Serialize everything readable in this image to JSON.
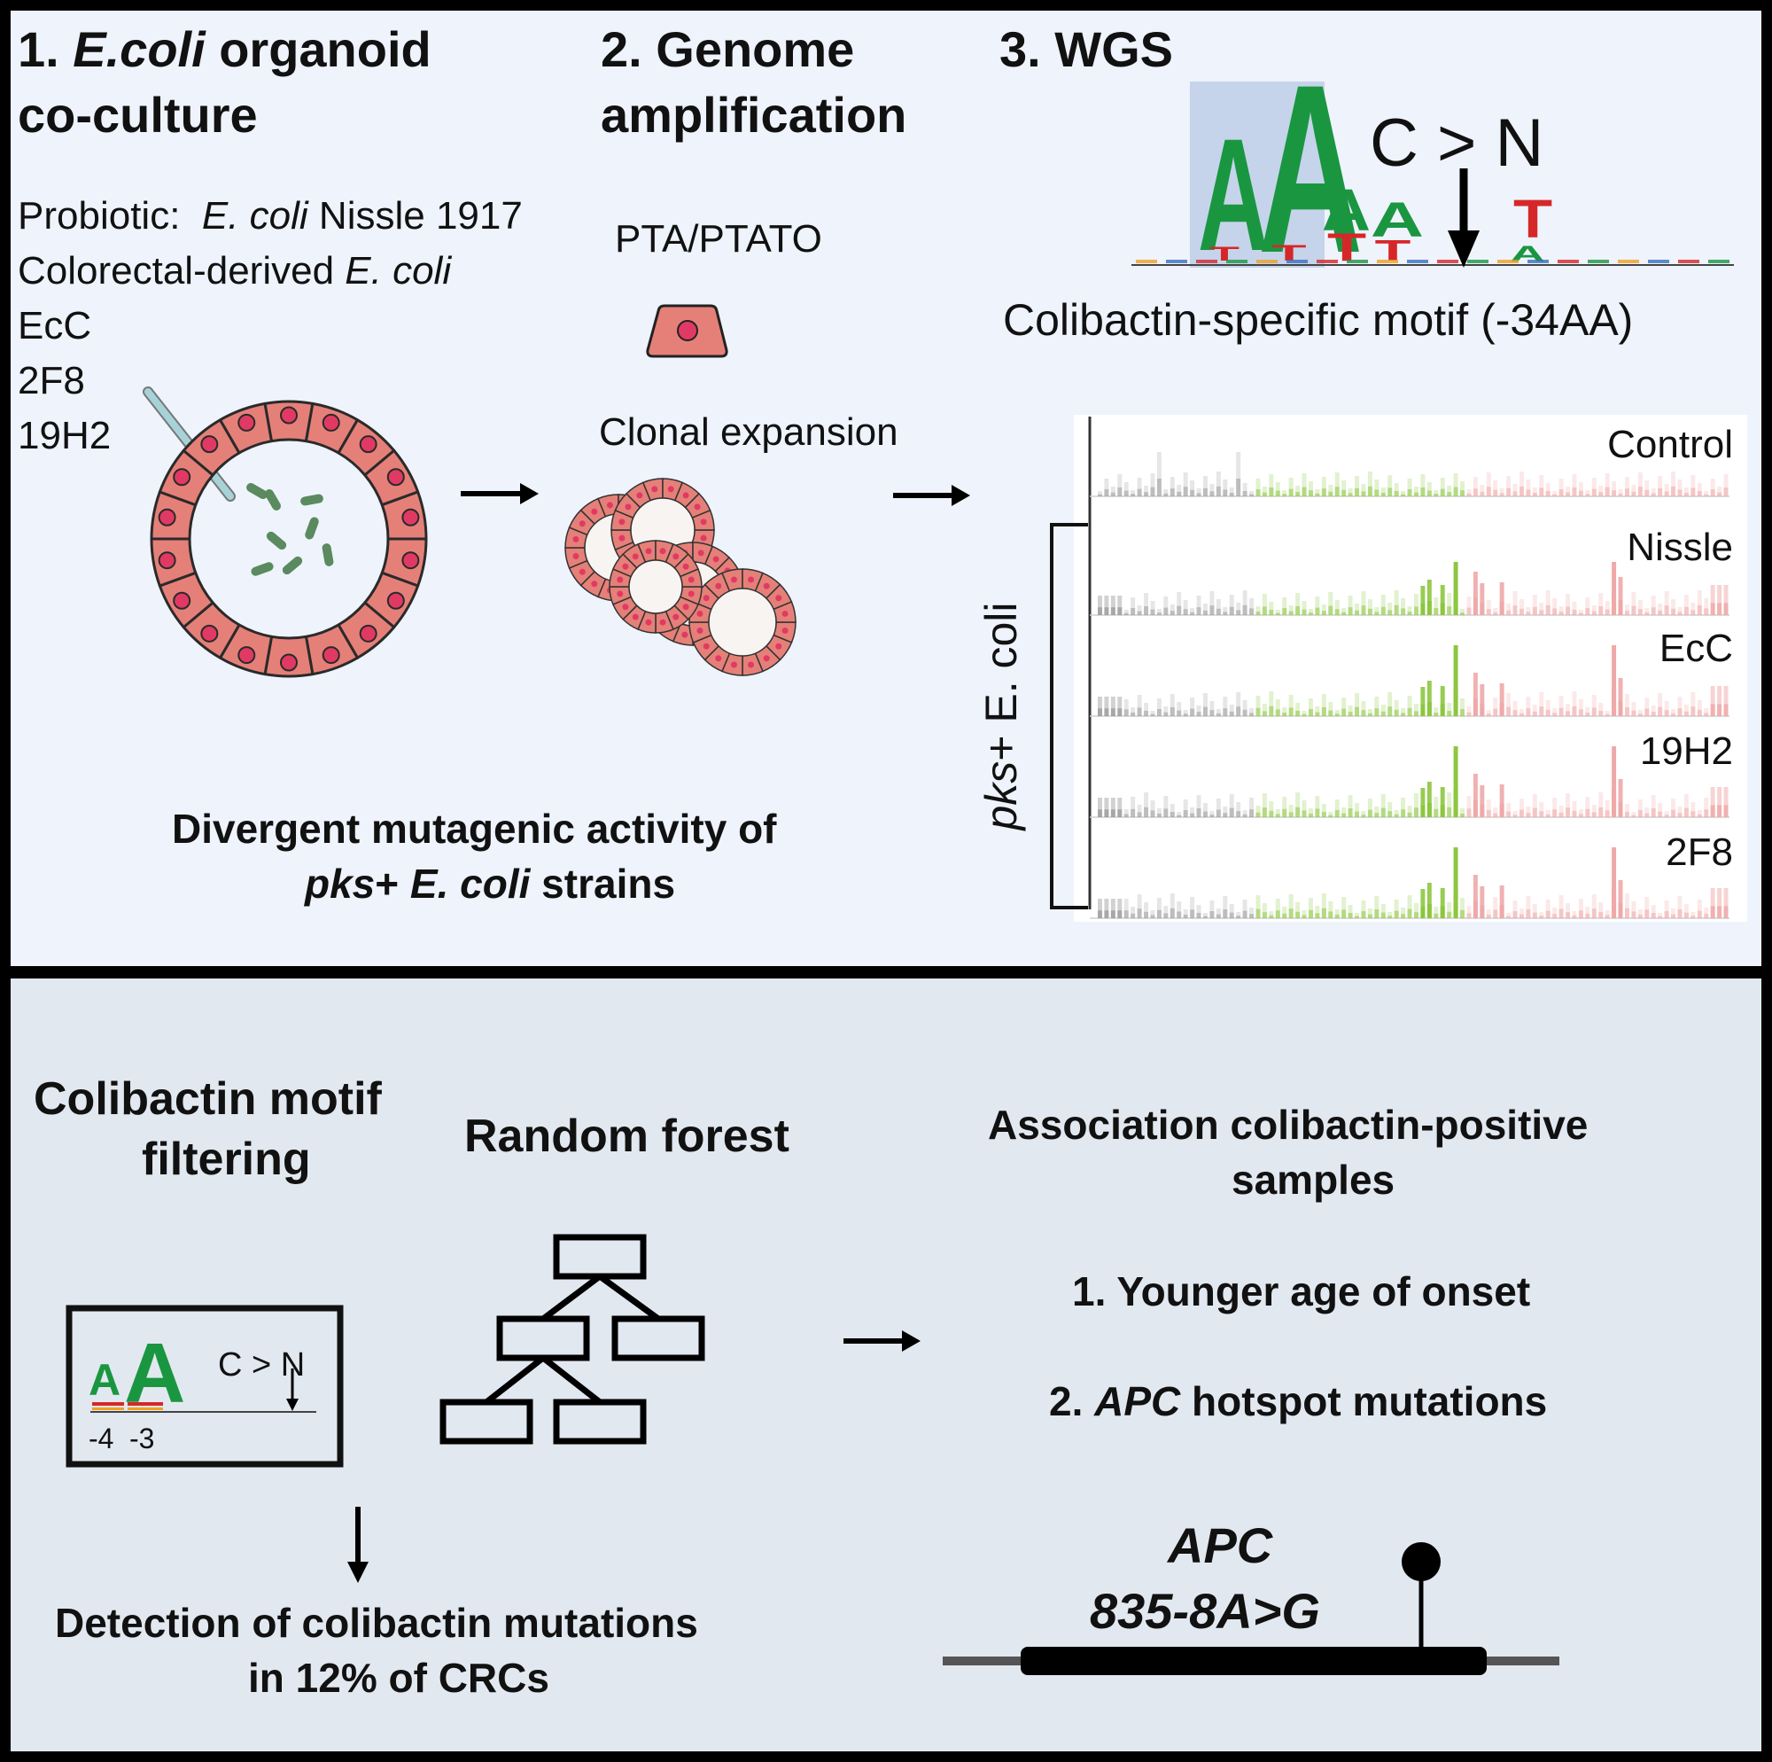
{
  "top_panel": {
    "step1": {
      "title_num": "1.",
      "title_italic": " E.coli",
      "title_rest": " organoid",
      "title_line2": "co-culture",
      "probiotic_label": "Probiotic:",
      "probiotic_species": "E. coli",
      "probiotic_strain": " Nissle 1917",
      "crc_label": "Colorectal-derived ",
      "crc_species": "E. coli",
      "strains": [
        "EcC",
        "2F8",
        "19H2"
      ]
    },
    "step2": {
      "title_line1": "2. Genome",
      "title_line2": "amplification",
      "method": "PTA/PTATO",
      "clonal": "Clonal expansion"
    },
    "step3": {
      "title": "3. WGS",
      "mutation": "C > N",
      "motif_caption": "Colibactin-specific motif (-34AA)",
      "motif_letters": [
        {
          "char": "A",
          "color": "#1a9641"
        },
        {
          "char": "A",
          "color": "#1a9641"
        },
        {
          "char": "A",
          "color": "#1a9641"
        },
        {
          "char": "A",
          "color": "#1a9641"
        },
        {
          "char": "T",
          "color": "#d62728"
        },
        {
          "char": "T",
          "color": "#d62728"
        },
        {
          "char": "T",
          "color": "#d62728"
        },
        {
          "char": "T",
          "color": "#d62728"
        },
        {
          "char": "T",
          "color": "#d62728"
        },
        {
          "char": "A",
          "color": "#1a9641"
        }
      ]
    },
    "profiles": {
      "bracket_label_italic": "pks",
      "bracket_label_rest": "+ E. coli",
      "rows": [
        {
          "name": "Control",
          "peaks": []
        },
        {
          "name": "Nissle",
          "peaks": [
            3,
            6,
            11
          ]
        },
        {
          "name": "EcC",
          "peaks": [
            3,
            6,
            11
          ]
        },
        {
          "name": "19H2",
          "peaks": [
            3,
            6,
            11
          ]
        },
        {
          "name": "2F8",
          "peaks": [
            3,
            6,
            11
          ]
        }
      ]
    },
    "conclusion_line1": "Divergent mutagenic activity of",
    "conclusion_line2_italic": "pks",
    "conclusion_line2_mid": "+ ",
    "conclusion_line2_italic2": "E. coli",
    "conclusion_line2_rest": " strains"
  },
  "bottom_panel": {
    "motif_filter_line1": "Colibactin motif",
    "motif_filter_line2": "filtering",
    "mini_motif_mutation": "C > N",
    "mini_motif_positions": [
      "-4",
      "-3"
    ],
    "random_forest": "Random forest",
    "detection_line1": "Detection of colibactin mutations",
    "detection_line2": "in 12% of CRCs",
    "association_line1": "Association colibactin-positive",
    "association_line2": "samples",
    "finding1": "1. Younger age of onset",
    "finding2_num": "2. ",
    "finding2_gene": "APC",
    "finding2_rest": " hotspot mutations",
    "gene_name": "APC",
    "gene_mutation": "835-8A>G"
  },
  "colors": {
    "top_bg": "#eef3fc",
    "bottom_bg": "#e2e8f0",
    "cell_fill": "#e58078",
    "nucleus": "#e03a64",
    "bacteria": "#5a8a5e",
    "sig_green": "#8dc63f",
    "sig_grey": "#9a9a9a",
    "sig_pink": "#f0a8a8",
    "motif_highlight": "#c5d4ea"
  }
}
